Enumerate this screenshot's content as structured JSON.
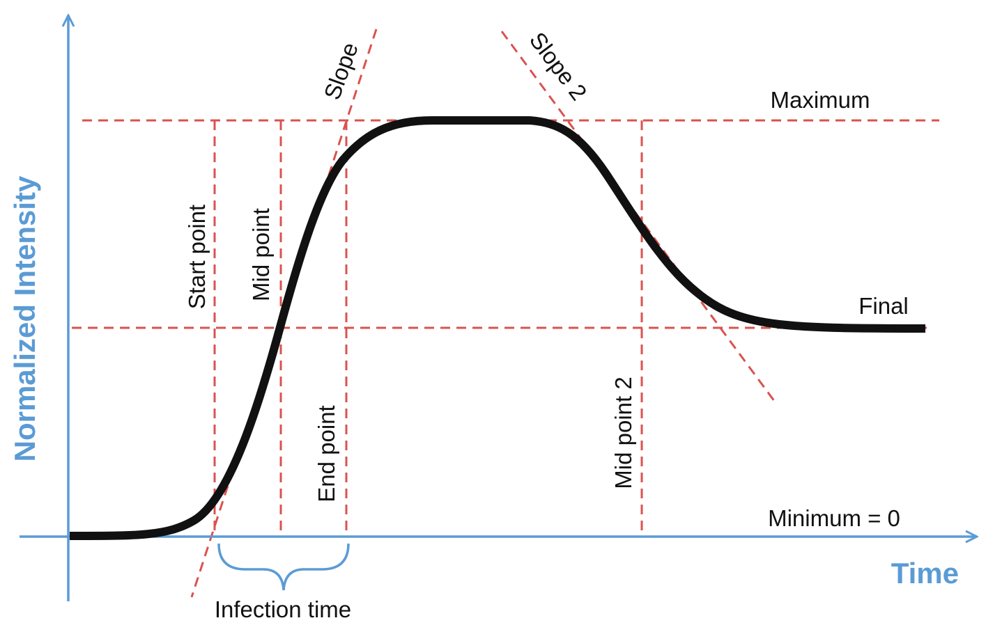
{
  "axes": {
    "x_title": "Time",
    "y_title": "Normalized Intensity"
  },
  "labels": {
    "maximum": "Maximum",
    "final": "Final",
    "minimum": "Minimum = 0",
    "slope": "Slope",
    "slope2": "Slope 2",
    "start_point": "Start point",
    "mid_point": "Mid point",
    "end_point": "End point",
    "mid_point2": "Mid point 2",
    "infection_time": "Infection time"
  },
  "colors": {
    "axis": "#5b9bd5",
    "guide": "#d9534f",
    "curve": "#111111"
  }
}
